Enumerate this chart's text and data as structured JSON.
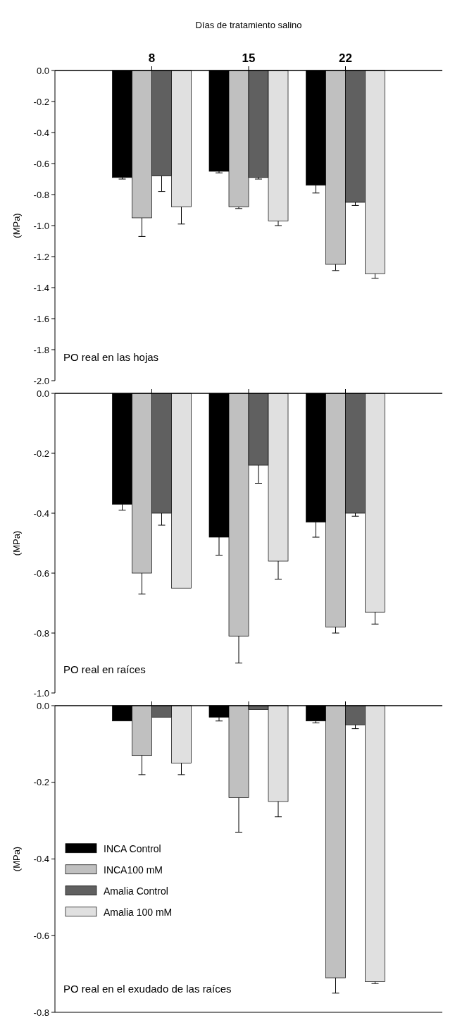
{
  "chart_data": [
    {
      "type": "bar",
      "xlabel": "Días de tratamiento salino",
      "ylabel": "(MPa)",
      "categories": [
        "8",
        "15",
        "22"
      ],
      "series": [
        {
          "color": "#000000",
          "values": [
            -0.69,
            -0.65,
            -0.74
          ],
          "errors": [
            [
              -0.7,
              -0.69
            ],
            [
              -0.66,
              -0.65
            ],
            [
              -0.79,
              -0.74
            ]
          ]
        },
        {
          "color": "#c0c0c0",
          "values": [
            -0.95,
            -0.88,
            -1.25
          ],
          "errors": [
            [
              -1.07,
              -0.95
            ],
            [
              -0.89,
              -0.88
            ],
            [
              -1.29,
              -1.25
            ]
          ]
        },
        {
          "color": "#606060",
          "values": [
            -0.68,
            -0.69,
            -0.85
          ],
          "errors": [
            [
              -0.78,
              -0.68
            ],
            [
              -0.7,
              -0.69
            ],
            [
              -0.87,
              -0.85
            ]
          ]
        },
        {
          "color": "#e0e0e0",
          "values": [
            -0.88,
            -0.97,
            -1.31
          ],
          "errors": [
            [
              -0.99,
              -0.88
            ],
            [
              -1.0,
              -0.97
            ],
            [
              -1.34,
              -1.31
            ]
          ]
        }
      ],
      "ylim": [
        -2.0,
        0
      ],
      "yticks": [
        {
          "value": 0,
          "label": "0.0"
        },
        {
          "value": -0.2,
          "label": "-0.2"
        },
        {
          "value": -0.4,
          "label": "-0.4"
        },
        {
          "value": -0.6,
          "label": "-0.6"
        },
        {
          "value": -0.8,
          "label": "-0.8"
        },
        {
          "value": -1.0,
          "label": "-1.0"
        },
        {
          "value": -1.2,
          "label": "-1.2"
        },
        {
          "value": -1.4,
          "label": "-1.4"
        },
        {
          "value": -1.6,
          "label": "-1.6"
        },
        {
          "value": -1.8,
          "label": "-1.8"
        },
        {
          "value": -2.0,
          "label": "-2.0"
        }
      ],
      "annotations": [
        "PO real en las hojas"
      ],
      "grid": false,
      "legend": false
    },
    {
      "type": "bar",
      "ylabel": "(MPa)",
      "categories": [
        "8",
        "15",
        "22"
      ],
      "series": [
        {
          "color": "#000000",
          "values": [
            -0.37,
            -0.48,
            -0.43
          ],
          "errors": [
            [
              -0.39,
              -0.37
            ],
            [
              -0.54,
              -0.48
            ],
            [
              -0.48,
              -0.43
            ]
          ]
        },
        {
          "color": "#c0c0c0",
          "values": [
            -0.6,
            -0.81,
            -0.78
          ],
          "errors": [
            [
              -0.67,
              -0.6
            ],
            [
              -0.9,
              -0.81
            ],
            [
              -0.8,
              -0.78
            ]
          ]
        },
        {
          "color": "#606060",
          "values": [
            -0.4,
            -0.24,
            -0.4
          ],
          "errors": [
            [
              -0.44,
              -0.4
            ],
            [
              -0.3,
              -0.24
            ],
            [
              -0.41,
              -0.4
            ]
          ]
        },
        {
          "color": "#e0e0e0",
          "values": [
            -0.65,
            -0.56,
            -0.73
          ],
          "errors": [
            null,
            [
              -0.62,
              -0.56
            ],
            [
              -0.77,
              -0.73
            ]
          ]
        }
      ],
      "ylim": [
        -1.0,
        0
      ],
      "yticks": [
        {
          "value": 0,
          "label": "0.0"
        },
        {
          "value": -0.2,
          "label": "-0.2"
        },
        {
          "value": -0.4,
          "label": "-0.4"
        },
        {
          "value": -0.6,
          "label": "-0.6"
        },
        {
          "value": -0.8,
          "label": "-0.8"
        },
        {
          "value": -1.0,
          "label": "-1.0"
        }
      ],
      "tick_labels": "y",
      "annotations": [
        "PO real en raíces"
      ],
      "grid": false,
      "legend": false
    },
    {
      "type": "bar",
      "ylabel": "(MPa)",
      "categories": [
        "8",
        "15",
        "22"
      ],
      "series": [
        {
          "name": "INCA Control",
          "color": "#000000",
          "values": [
            -0.04,
            -0.03,
            -0.04
          ],
          "errors": [
            null,
            [
              -0.04,
              -0.03
            ],
            [
              -0.045,
              -0.04
            ]
          ]
        },
        {
          "name": "INCA100 mM",
          "color": "#c0c0c0",
          "values": [
            -0.13,
            -0.24,
            -0.71
          ],
          "errors": [
            [
              -0.18,
              -0.13
            ],
            [
              -0.33,
              -0.24
            ],
            [
              -0.75,
              -0.71
            ]
          ]
        },
        {
          "name": "Amalia Control",
          "color": "#606060",
          "values": [
            -0.03,
            -0.01,
            -0.05
          ],
          "errors": [
            null,
            null,
            [
              -0.06,
              -0.05
            ]
          ]
        },
        {
          "name": "Amalia 100 mM",
          "color": "#e0e0e0",
          "values": [
            -0.15,
            -0.25,
            -0.72
          ],
          "errors": [
            [
              -0.18,
              -0.15
            ],
            [
              -0.29,
              -0.25
            ],
            [
              -0.725,
              -0.72
            ]
          ]
        }
      ],
      "ylim": [
        -0.8,
        0
      ],
      "yticks": [
        {
          "value": 0,
          "label": "0.0"
        },
        {
          "value": -0.2,
          "label": "-0.2"
        },
        {
          "value": -0.4,
          "label": "-0.4"
        },
        {
          "value": -0.6,
          "label": "-0.6"
        },
        {
          "value": -0.8,
          "label": "-0.8"
        }
      ],
      "tick_labels": "y",
      "annotations": [
        "PO real en el exudado de las raíces"
      ],
      "grid": false,
      "legend": "left"
    }
  ]
}
